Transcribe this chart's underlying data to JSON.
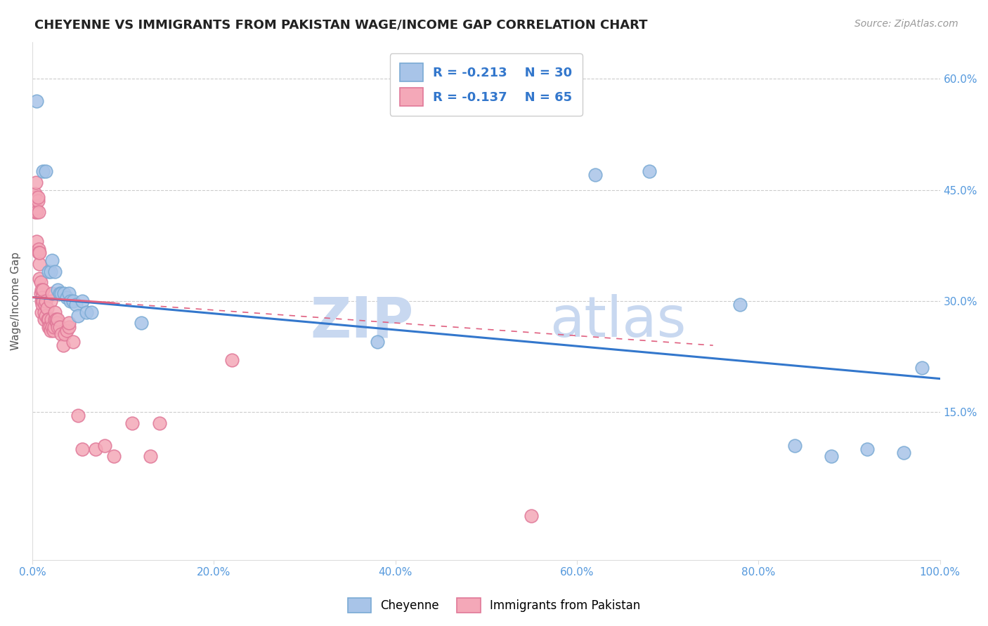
{
  "title": "CHEYENNE VS IMMIGRANTS FROM PAKISTAN WAGE/INCOME GAP CORRELATION CHART",
  "source": "Source: ZipAtlas.com",
  "ylabel": "Wage/Income Gap",
  "xlim": [
    0,
    1.0
  ],
  "ylim": [
    -0.05,
    0.65
  ],
  "xticks": [
    0.0,
    0.2,
    0.4,
    0.6,
    0.8,
    1.0
  ],
  "xtick_labels": [
    "0.0%",
    "20.0%",
    "40.0%",
    "60.0%",
    "80.0%",
    "100.0%"
  ],
  "yticks": [
    0.0,
    0.15,
    0.3,
    0.45,
    0.6
  ],
  "ytick_labels": [
    "",
    "15.0%",
    "30.0%",
    "45.0%",
    "60.0%"
  ],
  "background_color": "#ffffff",
  "grid_color": "#cccccc",
  "watermark_zip": "ZIP",
  "watermark_atlas": "atlas",
  "watermark_color": "#c8d8f0",
  "legend_R1": "-0.213",
  "legend_N1": "30",
  "legend_R2": "-0.137",
  "legend_N2": "65",
  "cheyenne_color": "#a8c4e8",
  "cheyenne_edge": "#7aaad4",
  "pakistan_color": "#f4a8b8",
  "pakistan_edge": "#e07898",
  "trend_cheyenne_color": "#3377cc",
  "trend_pakistan_color": "#e06080",
  "cheyenne_x": [
    0.005,
    0.012,
    0.015,
    0.018,
    0.02,
    0.022,
    0.025,
    0.028,
    0.03,
    0.032,
    0.035,
    0.038,
    0.04,
    0.042,
    0.045,
    0.048,
    0.05,
    0.055,
    0.06,
    0.065,
    0.12,
    0.38,
    0.62,
    0.68,
    0.78,
    0.84,
    0.88,
    0.92,
    0.96,
    0.98
  ],
  "cheyenne_y": [
    0.57,
    0.475,
    0.475,
    0.34,
    0.34,
    0.355,
    0.34,
    0.315,
    0.31,
    0.31,
    0.31,
    0.305,
    0.31,
    0.3,
    0.3,
    0.295,
    0.28,
    0.3,
    0.285,
    0.285,
    0.27,
    0.245,
    0.47,
    0.475,
    0.295,
    0.105,
    0.09,
    0.1,
    0.095,
    0.21
  ],
  "pakistan_x": [
    0.002,
    0.003,
    0.003,
    0.004,
    0.004,
    0.005,
    0.005,
    0.006,
    0.006,
    0.007,
    0.007,
    0.007,
    0.008,
    0.008,
    0.008,
    0.009,
    0.009,
    0.01,
    0.01,
    0.01,
    0.011,
    0.011,
    0.012,
    0.012,
    0.013,
    0.013,
    0.014,
    0.015,
    0.015,
    0.016,
    0.017,
    0.018,
    0.018,
    0.019,
    0.02,
    0.02,
    0.021,
    0.022,
    0.022,
    0.023,
    0.024,
    0.025,
    0.025,
    0.026,
    0.027,
    0.028,
    0.028,
    0.03,
    0.032,
    0.034,
    0.036,
    0.038,
    0.04,
    0.04,
    0.045,
    0.05,
    0.055,
    0.07,
    0.08,
    0.09,
    0.11,
    0.13,
    0.14,
    0.22,
    0.55
  ],
  "pakistan_y": [
    0.44,
    0.445,
    0.42,
    0.425,
    0.46,
    0.38,
    0.42,
    0.435,
    0.44,
    0.37,
    0.365,
    0.42,
    0.33,
    0.35,
    0.365,
    0.31,
    0.325,
    0.285,
    0.3,
    0.315,
    0.295,
    0.305,
    0.3,
    0.315,
    0.275,
    0.285,
    0.295,
    0.28,
    0.3,
    0.29,
    0.275,
    0.275,
    0.265,
    0.265,
    0.26,
    0.3,
    0.275,
    0.265,
    0.31,
    0.26,
    0.265,
    0.275,
    0.285,
    0.275,
    0.27,
    0.265,
    0.275,
    0.265,
    0.255,
    0.24,
    0.255,
    0.26,
    0.265,
    0.27,
    0.245,
    0.145,
    0.1,
    0.1,
    0.105,
    0.09,
    0.135,
    0.09,
    0.135,
    0.22,
    0.01
  ],
  "trend_cheyenne_x0": 0.0,
  "trend_cheyenne_x1": 1.0,
  "trend_cheyenne_y0": 0.305,
  "trend_cheyenne_y1": 0.195,
  "trend_pakistan_x0": 0.0,
  "trend_pakistan_x1": 0.75,
  "trend_pakistan_y0": 0.305,
  "trend_pakistan_y1": 0.24
}
